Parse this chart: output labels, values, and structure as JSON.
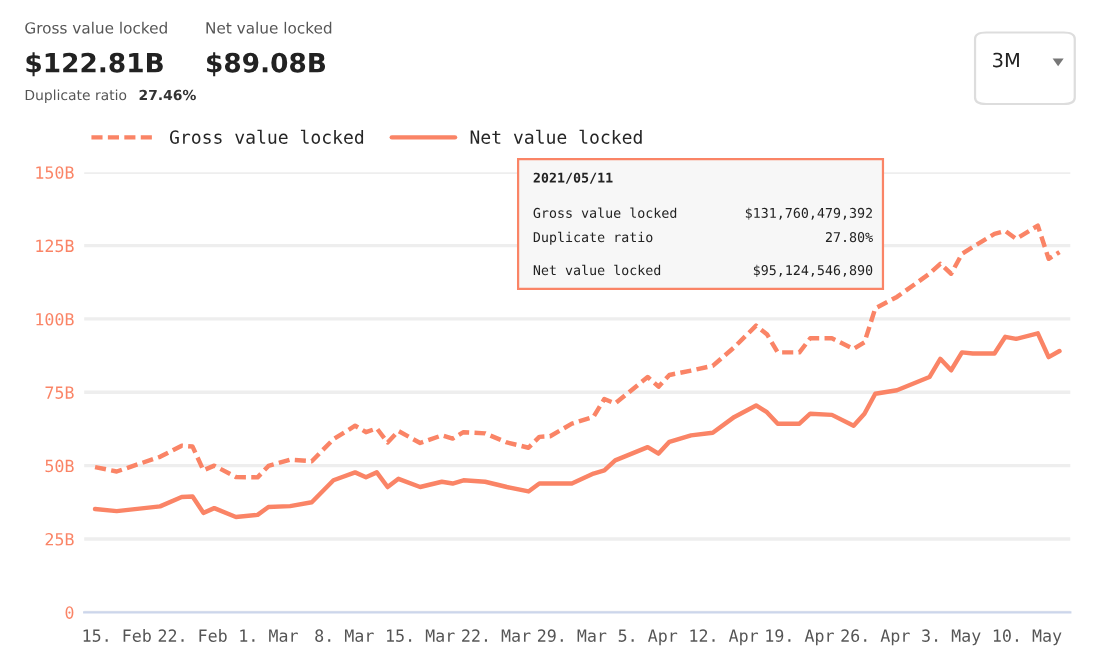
{
  "chart_data": {
    "type": "line",
    "annotations": [
      "Gross value locked",
      "$122.81B",
      "Duplicate ratio",
      "27.46%",
      "Net value locked",
      "$89.08B",
      "3M",
      "2021/05/11",
      "Gross value locked",
      "$131,760,479,392",
      "Duplicate ratio",
      "27.80%",
      "Net value locked",
      "$95,124,546,890"
    ],
    "x": [
      "2021-02-13",
      "2021-02-15",
      "2021-02-19",
      "2021-02-21",
      "2021-02-22",
      "2021-02-23",
      "2021-02-24",
      "2021-02-26",
      "2021-02-28",
      "2021-03-01",
      "2021-03-03",
      "2021-03-05",
      "2021-03-07",
      "2021-03-09",
      "2021-03-10",
      "2021-03-11",
      "2021-03-12",
      "2021-03-13",
      "2021-03-15",
      "2021-03-17",
      "2021-03-18",
      "2021-03-19",
      "2021-03-21",
      "2021-03-23",
      "2021-03-25",
      "2021-03-26",
      "2021-03-27",
      "2021-03-29",
      "2021-03-31",
      "2021-04-01",
      "2021-04-02",
      "2021-04-05",
      "2021-04-06",
      "2021-04-07",
      "2021-04-09",
      "2021-04-11",
      "2021-04-13",
      "2021-04-15",
      "2021-04-16",
      "2021-04-17",
      "2021-04-19",
      "2021-04-20",
      "2021-04-22",
      "2021-04-24",
      "2021-04-25",
      "2021-04-26",
      "2021-04-28",
      "2021-05-01",
      "2021-05-02",
      "2021-05-03",
      "2021-05-04",
      "2021-05-05",
      "2021-05-07",
      "2021-05-08",
      "2021-05-09",
      "2021-05-11",
      "2021-05-12",
      "2021-05-13"
    ],
    "series": [
      {
        "name": "Gross value locked",
        "color": "#fa8466",
        "line_style": "dashed",
        "values": [
          49.5,
          48,
          53,
          56.8,
          56.5,
          48.4,
          50,
          46.1,
          46,
          49.9,
          52,
          51.5,
          59,
          63.6,
          61.4,
          62.7,
          57.9,
          61.8,
          57.7,
          60.3,
          59.2,
          61.4,
          61,
          57.9,
          56.1,
          59.8,
          60,
          64.3,
          66.6,
          72.7,
          71.2,
          80.2,
          76.9,
          80.9,
          82.4,
          84,
          90.4,
          97.7,
          94.8,
          88.6,
          88.6,
          93.4,
          93.4,
          89.8,
          92,
          103.6,
          107.5,
          115.4,
          118.8,
          115.4,
          122.2,
          124.5,
          129,
          130,
          127.3,
          131.8,
          120.5,
          122.81
        ]
      },
      {
        "name": "Net value locked",
        "color": "#fa8466",
        "line_style": "solid",
        "values": [
          35.2,
          34.5,
          36.1,
          39.3,
          39.5,
          33.9,
          35.5,
          32.5,
          33.2,
          35.9,
          36.2,
          37.5,
          45,
          47.7,
          46,
          47.7,
          42.7,
          45.5,
          42.7,
          44.5,
          43.9,
          45,
          44.5,
          42.7,
          41.2,
          43.9,
          43.9,
          43.9,
          47.3,
          48.4,
          51.8,
          56.3,
          54.1,
          58.1,
          60.3,
          61.2,
          66.6,
          70.5,
          68.2,
          64.3,
          64.3,
          67.7,
          67.3,
          63.6,
          67.7,
          74.5,
          75.7,
          80.2,
          86.4,
          82.5,
          88.6,
          88.2,
          88.2,
          93.9,
          93.2,
          95.1,
          87,
          89.08
        ]
      }
    ],
    "xlim": [
      "2021-02-12",
      "2021-05-14"
    ],
    "xticks": [
      {
        "value": "2021-02-15",
        "label": "15. Feb"
      },
      {
        "value": "2021-02-22",
        "label": "22. Feb"
      },
      {
        "value": "2021-03-01",
        "label": "1. Mar"
      },
      {
        "value": "2021-03-08",
        "label": "8. Mar"
      },
      {
        "value": "2021-03-15",
        "label": "15. Mar"
      },
      {
        "value": "2021-03-22",
        "label": "22. Mar"
      },
      {
        "value": "2021-03-29",
        "label": "29. Mar"
      },
      {
        "value": "2021-04-05",
        "label": "5. Apr"
      },
      {
        "value": "2021-04-12",
        "label": "12. Apr"
      },
      {
        "value": "2021-04-19",
        "label": "19. Apr"
      },
      {
        "value": "2021-04-26",
        "label": "26. Apr"
      },
      {
        "value": "2021-05-03",
        "label": "3. May"
      },
      {
        "value": "2021-05-10",
        "label": "10. May"
      }
    ],
    "ylim": [
      0,
      150
    ],
    "yticks": [
      0,
      {
        "value": 25,
        "label": "25B"
      },
      {
        "value": 50,
        "label": "50B"
      },
      {
        "value": 75,
        "label": "75B"
      },
      {
        "value": 100,
        "label": "100B"
      },
      {
        "value": 125,
        "label": "125B"
      },
      {
        "value": 150,
        "label": "150B"
      }
    ],
    "grid": "y",
    "legend": "top left",
    "marker": "none"
  }
}
